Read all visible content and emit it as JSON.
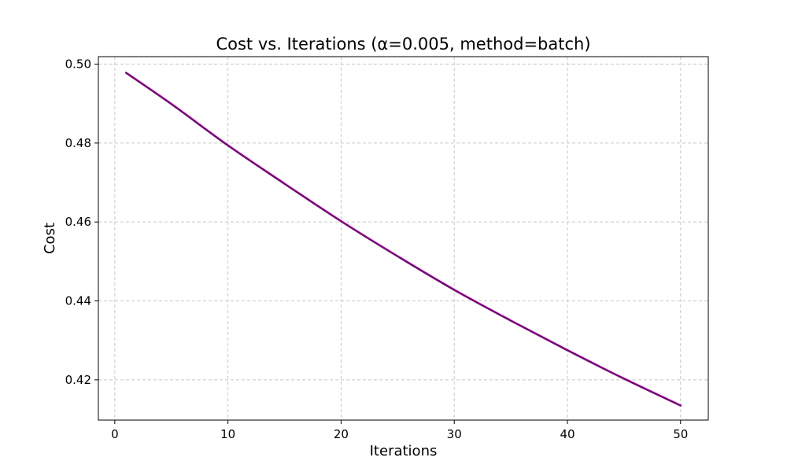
{
  "chart_data": {
    "type": "line",
    "title": "Cost vs. Iterations (α=0.005, method=batch)",
    "xlabel": "Iterations",
    "ylabel": "Cost",
    "xlim": [
      -1.45,
      52.45
    ],
    "ylim": [
      0.4098,
      0.5019
    ],
    "xticks": [
      0,
      10,
      20,
      30,
      40,
      50
    ],
    "xtick_labels": [
      "0",
      "10",
      "20",
      "30",
      "40",
      "50"
    ],
    "yticks": [
      0.42,
      0.44,
      0.46,
      0.48,
      0.5
    ],
    "ytick_labels": [
      "0.42",
      "0.44",
      "0.46",
      "0.48",
      "0.50"
    ],
    "grid": true,
    "series": [
      {
        "color": "#800080",
        "x": [
          1,
          5,
          10,
          15,
          20,
          25,
          30,
          35,
          40,
          45,
          50
        ],
        "y": [
          0.4978,
          0.4899,
          0.4794,
          0.4697,
          0.4602,
          0.4513,
          0.4428,
          0.435,
          0.4275,
          0.4203,
          0.4135
        ]
      }
    ]
  }
}
